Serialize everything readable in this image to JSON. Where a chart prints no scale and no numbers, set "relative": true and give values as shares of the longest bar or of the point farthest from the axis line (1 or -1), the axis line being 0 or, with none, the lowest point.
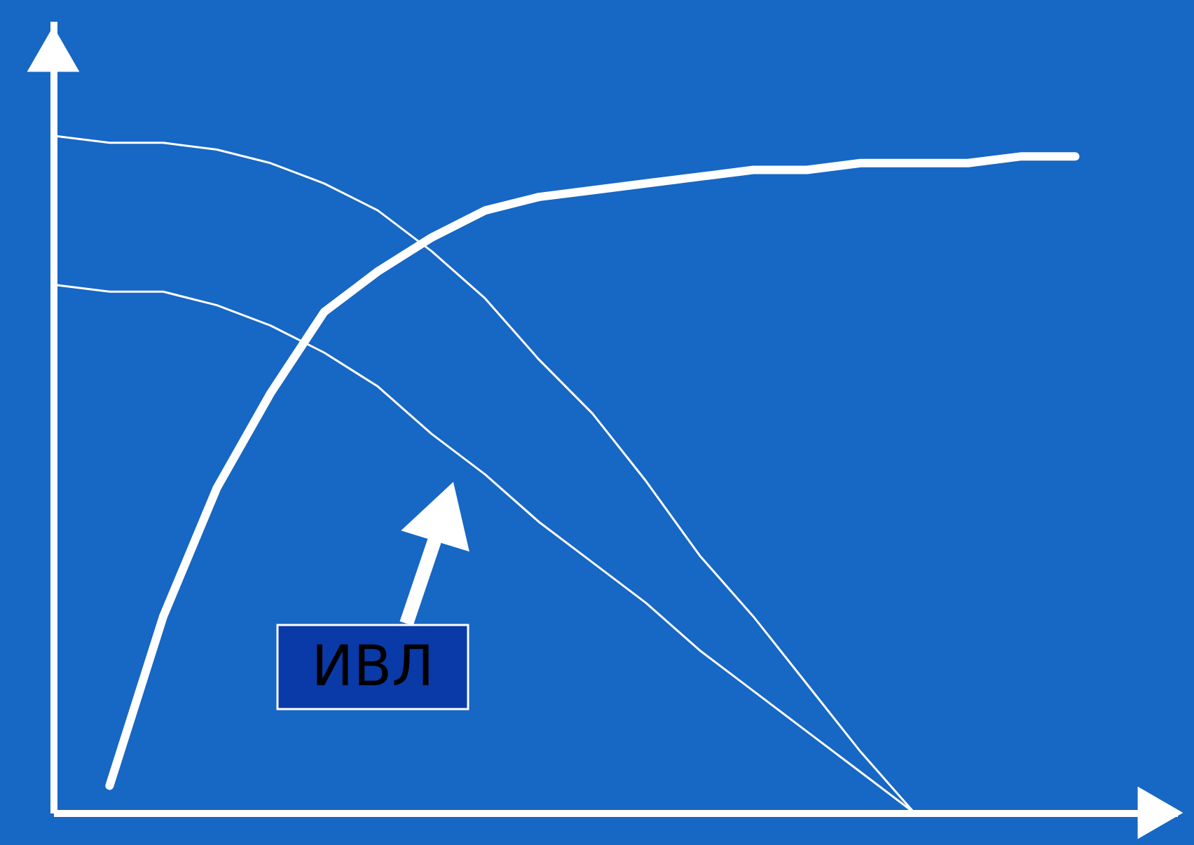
{
  "chart_data": {
    "type": "line",
    "relative": true,
    "categories": [
      null,
      null,
      null,
      null,
      null,
      null,
      null,
      null,
      null,
      null,
      null,
      null,
      null,
      null,
      null,
      null,
      null,
      null,
      null,
      null
    ],
    "series": [
      {
        "color": "#ffffff",
        "values": [
          null,
          0.04,
          0.29,
          0.48,
          0.62,
          0.74,
          0.8,
          0.85,
          0.89,
          0.91,
          0.92,
          0.93,
          0.94,
          0.95,
          0.95,
          0.96,
          0.96,
          0.96,
          0.97,
          0.97
        ]
      },
      {
        "color": "#ffffff",
        "values": [
          1.0,
          0.99,
          0.99,
          0.98,
          0.96,
          0.93,
          0.89,
          0.83,
          0.76,
          0.67,
          0.59,
          0.49,
          0.38,
          0.29,
          0.19,
          0.09,
          0.0,
          null,
          null,
          null
        ]
      },
      {
        "color": "#ffffff",
        "values": [
          0.78,
          0.77,
          0.77,
          0.75,
          0.72,
          0.68,
          0.63,
          0.56,
          0.5,
          0.43,
          0.37,
          0.31,
          0.24,
          0.18,
          0.12,
          0.06,
          0.0,
          null,
          null,
          null
        ]
      }
    ],
    "annotations": [
      "ИВЛ"
    ],
    "grid": false,
    "marker": "none",
    "line_style": "solid"
  }
}
